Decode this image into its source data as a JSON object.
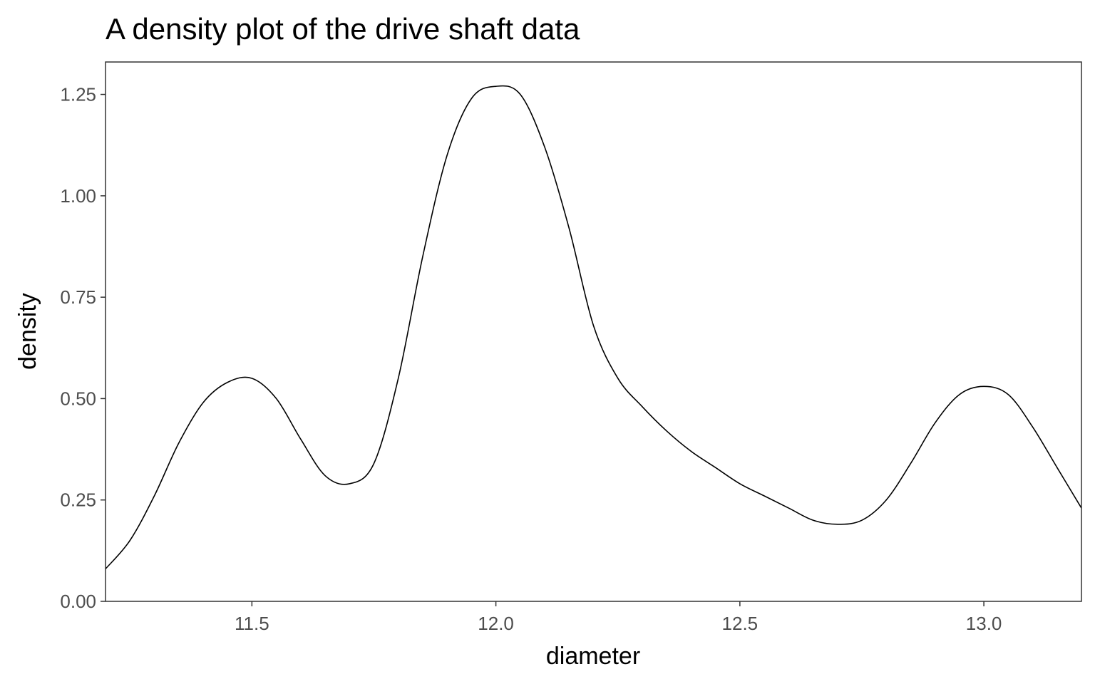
{
  "chart_data": {
    "type": "line",
    "title": "A density plot of the drive shaft data",
    "xlabel": "diameter",
    "ylabel": "density",
    "xlim": [
      11.2,
      13.2
    ],
    "ylim": [
      0,
      1.33
    ],
    "x_ticks": [
      11.5,
      12.0,
      12.5,
      13.0
    ],
    "x_tick_labels": [
      "11.5",
      "12.0",
      "12.5",
      "13.0"
    ],
    "y_ticks": [
      0,
      0.25,
      0.5,
      0.75,
      1.0,
      1.25
    ],
    "y_tick_labels": [
      "0.00",
      "0.25",
      "0.50",
      "0.75",
      "1.00",
      "1.25"
    ],
    "grid": false,
    "series": [
      {
        "color": "#000000",
        "x": [
          11.2,
          11.25,
          11.3,
          11.35,
          11.4,
          11.45,
          11.5,
          11.55,
          11.6,
          11.65,
          11.7,
          11.75,
          11.8,
          11.85,
          11.9,
          11.95,
          12.0,
          12.05,
          12.1,
          12.15,
          12.2,
          12.25,
          12.3,
          12.35,
          12.4,
          12.45,
          12.5,
          12.55,
          12.6,
          12.65,
          12.7,
          12.75,
          12.8,
          12.85,
          12.9,
          12.95,
          13.0,
          13.05,
          13.1,
          13.15,
          13.2
        ],
        "y": [
          0.08,
          0.15,
          0.26,
          0.39,
          0.49,
          0.54,
          0.55,
          0.5,
          0.4,
          0.31,
          0.29,
          0.34,
          0.55,
          0.85,
          1.1,
          1.24,
          1.27,
          1.25,
          1.12,
          0.92,
          0.68,
          0.55,
          0.48,
          0.42,
          0.37,
          0.33,
          0.29,
          0.26,
          0.23,
          0.2,
          0.19,
          0.2,
          0.25,
          0.34,
          0.44,
          0.51,
          0.53,
          0.51,
          0.43,
          0.33,
          0.23
        ]
      }
    ]
  }
}
